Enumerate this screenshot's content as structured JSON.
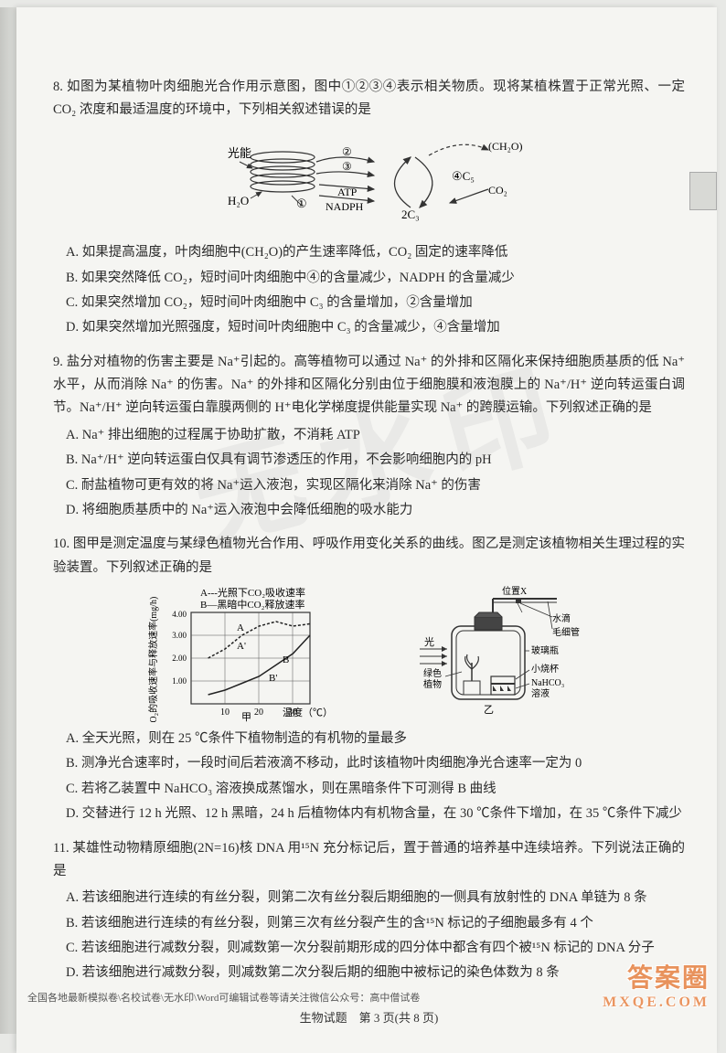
{
  "q8": {
    "number": "8.",
    "stem": "如图为某植物叶肉细胞光合作用示意图，图中①②③④表示相关物质。现将某植株置于正常光照、一定 CO₂ 浓度和最适温度的环境中，下列相关叙述错误的是",
    "diagram": {
      "labels": {
        "light": "光能",
        "h2o": "H₂O",
        "atp": "ATP",
        "nadph": "NADPH",
        "ch2o": "(CH₂O)",
        "co2": "CO₂",
        "c3": "2C₃",
        "c5": "④C₅",
        "n1": "①",
        "n2": "②",
        "n3": "③"
      }
    },
    "options": {
      "A": "A. 如果提高温度，叶肉细胞中(CH₂O)的产生速率降低，CO₂ 固定的速率降低",
      "B": "B. 如果突然降低 CO₂，短时间叶肉细胞中④的含量减少，NADPH 的含量减少",
      "C": "C. 如果突然增加 CO₂，短时间叶肉细胞中 C₃ 的含量增加，②含量增加",
      "D": "D. 如果突然增加光照强度，短时间叶肉细胞中 C₃ 的含量减少，④含量增加"
    }
  },
  "q9": {
    "number": "9.",
    "stem": "盐分对植物的伤害主要是 Na⁺引起的。高等植物可以通过 Na⁺ 的外排和区隔化来保持细胞质基质的低 Na⁺水平，从而消除 Na⁺ 的伤害。Na⁺ 的外排和区隔化分别由位于细胞膜和液泡膜上的 Na⁺/H⁺ 逆向转运蛋白调节。Na⁺/H⁺ 逆向转运蛋白靠膜两侧的 H⁺电化学梯度提供能量实现 Na⁺ 的跨膜运输。下列叙述正确的是",
    "options": {
      "A": "A. Na⁺ 排出细胞的过程属于协助扩散，不消耗 ATP",
      "B": "B. Na⁺/H⁺ 逆向转运蛋白仅具有调节渗透压的作用，不会影响细胞内的 pH",
      "C": "C. 耐盐植物可更有效的将 Na⁺运入液泡，实现区隔化来消除 Na⁺ 的伤害",
      "D": "D. 将细胞质基质中的 Na⁺运入液泡中会降低细胞的吸水能力"
    }
  },
  "q10": {
    "number": "10.",
    "stem": "图甲是测定温度与某绿色植物光合作用、呼吸作用变化关系的曲线。图乙是测定该植物相关生理过程的实验装置。下列叙述正确的是",
    "chart": {
      "legend_a": "A---光照下CO₂吸收速率",
      "legend_b": "B—黑暗中CO₂释放速率",
      "ylabel": "CO₂的吸收速率与释放速率(mg/h)",
      "xlabel": "温度（℃）",
      "x_ticks": [
        "10",
        "20",
        "30"
      ],
      "y_ticks": [
        "1.00",
        "2.00",
        "3.00",
        "4.00"
      ],
      "figure_label": "甲",
      "curve_a": [
        {
          "x": 5,
          "y": 2.0
        },
        {
          "x": 10,
          "y": 2.4
        },
        {
          "x": 15,
          "y": 3.0
        },
        {
          "x": 20,
          "y": 3.4
        },
        {
          "x": 25,
          "y": 3.6
        },
        {
          "x": 30,
          "y": 3.4
        },
        {
          "x": 35,
          "y": 3.5
        }
      ],
      "curve_b": [
        {
          "x": 5,
          "y": 0.4
        },
        {
          "x": 10,
          "y": 0.6
        },
        {
          "x": 15,
          "y": 0.9
        },
        {
          "x": 20,
          "y": 1.2
        },
        {
          "x": 25,
          "y": 1.7
        },
        {
          "x": 30,
          "y": 2.2
        },
        {
          "x": 35,
          "y": 3.0
        }
      ],
      "colors": {
        "grid": "#333",
        "curve": "#222",
        "bg": "#f0f0ed"
      }
    },
    "apparatus": {
      "labels": {
        "position_x": "位置X",
        "water_drop": "水滴",
        "capillary": "毛细管",
        "flask": "玻璃瓶",
        "beaker": "小烧杯",
        "nahco3": "NaHCO₃溶液",
        "light": "光",
        "plant": "绿色植物",
        "figure_label": "乙"
      }
    },
    "options": {
      "A": "A. 全天光照，则在 25 ℃条件下植物制造的有机物的量最多",
      "B": "B. 测净光合速率时，一段时间后若液滴不移动，此时该植物叶肉细胞净光合速率一定为 0",
      "C": "C. 若将乙装置中 NaHCO₃ 溶液换成蒸馏水，则在黑暗条件下可测得 B 曲线",
      "D": "D. 交替进行 12 h 光照、12 h 黑暗，24 h 后植物体内有机物含量，在 30 ℃条件下增加，在 35 ℃条件下减少"
    }
  },
  "q11": {
    "number": "11.",
    "stem": "某雄性动物精原细胞(2N=16)核 DNA 用¹⁵N 充分标记后，置于普通的培养基中连续培养。下列说法正确的是",
    "options": {
      "A": "A. 若该细胞进行连续的有丝分裂，则第二次有丝分裂后期细胞的一侧具有放射性的 DNA 单链为 8 条",
      "B": "B. 若该细胞进行连续的有丝分裂，则第三次有丝分裂产生的含¹⁵N 标记的子细胞最多有 4 个",
      "C": "C. 若该细胞进行减数分裂，则减数第一次分裂前期形成的四分体中都含有四个被¹⁵N 标记的 DNA 分子",
      "D": "D. 若该细胞进行减数分裂，则减数第二次分裂后期的细胞中被标记的染色体数为 8 条"
    }
  },
  "footer": "生物试题　第 3 页(共 8 页)",
  "watermarks": {
    "center": "无水印",
    "bottom_text": "全国各地最新模拟卷\\名校试卷\\无水印\\Word可编辑试卷等请关注微信公众号：高中僧试卷",
    "logo_line1": "答案圈",
    "logo_line2": "MXQE.COM"
  }
}
